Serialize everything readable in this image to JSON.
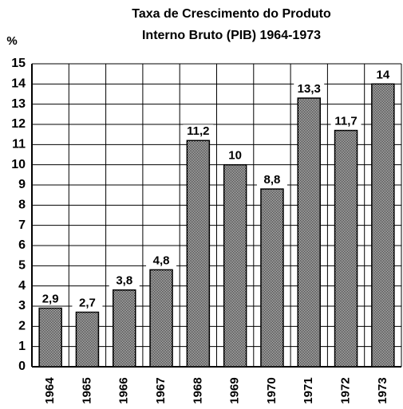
{
  "chart_data": {
    "type": "bar",
    "title": [
      "Taxa de Crescimento do Produto",
      "Interno Bruto (PIB) 1964-1973"
    ],
    "y_label": "%",
    "categories": [
      "1964",
      "1965",
      "1966",
      "1967",
      "1968",
      "1969",
      "1970",
      "1971",
      "1972",
      "1973"
    ],
    "values": [
      2.9,
      2.7,
      3.8,
      4.8,
      11.2,
      10,
      8.8,
      13.3,
      11.7,
      14
    ],
    "value_labels": [
      "2,9",
      "2,7",
      "3,8",
      "4,8",
      "11,2",
      "10",
      "8,8",
      "13,3",
      "11,7",
      "14"
    ],
    "color": "#808080",
    "ylim": [
      0,
      15
    ],
    "yticks": [
      0,
      1,
      2,
      3,
      4,
      5,
      6,
      7,
      8,
      9,
      10,
      11,
      12,
      13,
      14,
      15
    ],
    "grid": true
  }
}
